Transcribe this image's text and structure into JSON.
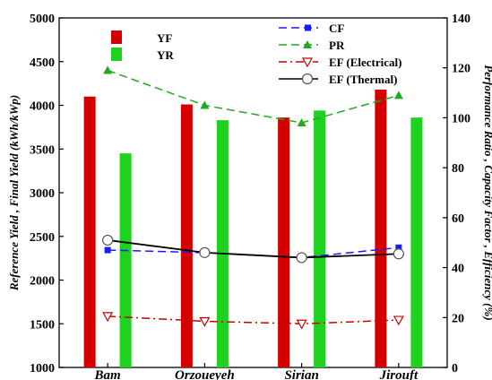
{
  "chart_data": {
    "type": "bar+line",
    "categories": [
      "Bam",
      "Orzoueyeh",
      "Sirian",
      "Jirouft"
    ],
    "ylabel_left": "Reference Yield , Final Yield (kWh/kWp)",
    "ylabel_right": "Performance Ratio , Capacity Factor , Efficiency (%)",
    "ylim_left": [
      1000,
      5000
    ],
    "yticks_left": [
      "1000",
      "1500",
      "2000",
      "2500",
      "3000",
      "3500",
      "4000",
      "4500",
      "5000"
    ],
    "ylim_right": [
      0,
      140
    ],
    "yticks_right": [
      "0",
      "20",
      "40",
      "60",
      "80",
      "100",
      "120",
      "140"
    ],
    "grid": false,
    "bar_series": [
      {
        "name": "YF",
        "color": "#d40000",
        "values": [
          4100,
          4010,
          3860,
          4180
        ]
      },
      {
        "name": "YR",
        "color": "#1fd21f",
        "values": [
          3450,
          3830,
          3940,
          3860
        ]
      }
    ],
    "line_series": [
      {
        "name": "CF",
        "color": "#1a1aff",
        "style": "dashed",
        "marker": "square",
        "values": [
          47,
          46,
          44,
          48
        ]
      },
      {
        "name": "PR",
        "color": "#1faa1f",
        "style": "dashed",
        "marker": "triangle-up",
        "values": [
          119,
          105,
          98,
          109
        ]
      },
      {
        "name": "EF (Electrical)",
        "color": "#c80000",
        "style": "dashdot",
        "marker": "triangle-down",
        "values": [
          20.5,
          18.5,
          17.5,
          19
        ]
      },
      {
        "name": "EF (Thermal)",
        "color": "#000000",
        "style": "solid",
        "marker": "circle",
        "values": [
          51,
          46,
          44,
          45.5
        ]
      }
    ],
    "legend_bars_placement": "top-left",
    "legend_lines_placement": "top-right"
  }
}
